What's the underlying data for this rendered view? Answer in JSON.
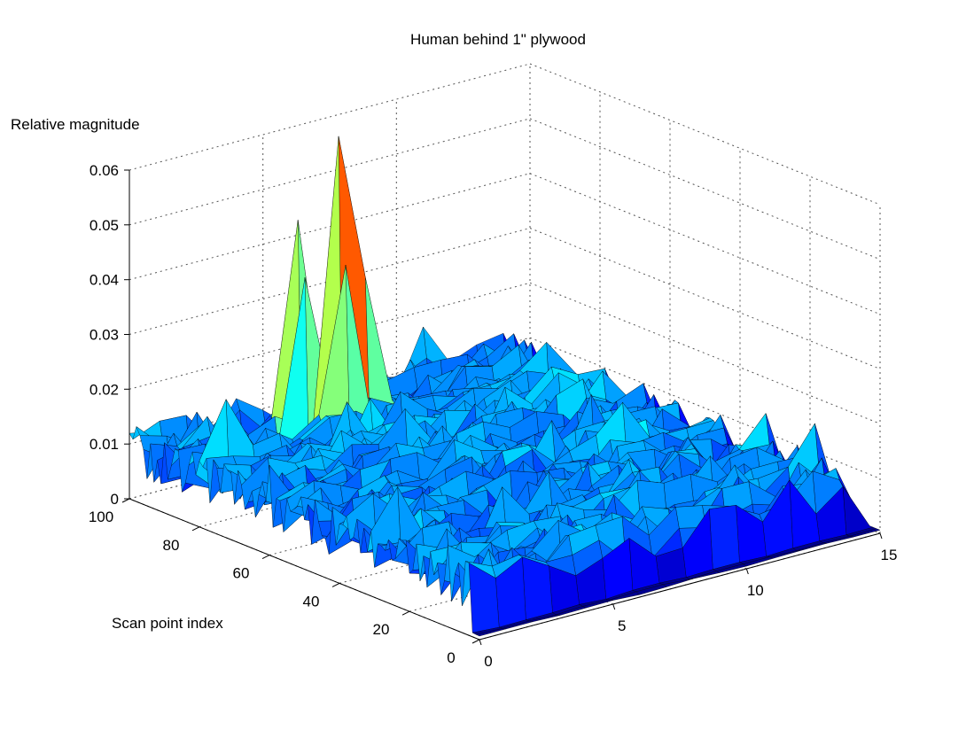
{
  "chart_data": {
    "type": "surface",
    "title": "Human behind 1\" plywood",
    "xlabel": "",
    "ylabel": "Scan point index",
    "zlabel": "Relative magnitude",
    "xlim": [
      0,
      15
    ],
    "ylim": [
      0,
      100
    ],
    "zlim": [
      0,
      0.06
    ],
    "x_ticks": [
      "0",
      "5",
      "10",
      "15"
    ],
    "y_ticks": [
      "0",
      "20",
      "40",
      "60",
      "80",
      "100"
    ],
    "z_ticks": [
      "0",
      "0.01",
      "0.02",
      "0.03",
      "0.04",
      "0.05",
      "0.06"
    ],
    "grid": true,
    "colormap": "jet",
    "colors": {
      "low": "#0000a8",
      "mid_low": "#1f3ff0",
      "mid": "#2a8fff",
      "mid_high": "#37e6e6",
      "high": "#e6e64a",
      "edge": "#000000",
      "grid": "#555555"
    },
    "x_count": 16,
    "y_count": 101,
    "baseline": 0.0045,
    "noise_amp": 0.009,
    "edge_rows_flat": 3,
    "peaks": [
      {
        "x": 6,
        "y": 86,
        "z": 0.062
      },
      {
        "x": 5,
        "y": 90,
        "z": 0.047
      },
      {
        "x": 5,
        "y": 88,
        "z": 0.037
      },
      {
        "x": 6,
        "y": 84,
        "z": 0.039
      },
      {
        "x": 7,
        "y": 86,
        "z": 0.035
      },
      {
        "x": 1,
        "y": 80,
        "z": 0.022
      },
      {
        "x": 11,
        "y": 43,
        "z": 0.018
      },
      {
        "x": 9,
        "y": 48,
        "z": 0.016
      },
      {
        "x": 4,
        "y": 70,
        "z": 0.015
      },
      {
        "x": 8,
        "y": 60,
        "z": 0.014
      }
    ]
  }
}
